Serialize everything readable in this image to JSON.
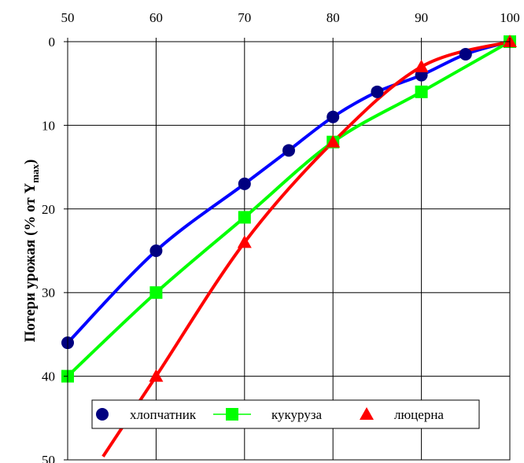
{
  "chart_data": {
    "type": "line",
    "title": "",
    "xlabel": "",
    "ylabel": {
      "main": "Потери урожая  (% от Y",
      "subscript": "max",
      "close": ")"
    },
    "x_axis_position": "top",
    "y_axis_inverted": true,
    "xlim": [
      50,
      100
    ],
    "ylim": [
      0,
      50
    ],
    "x_ticks": [
      "50",
      "60",
      "70",
      "80",
      "90",
      "100"
    ],
    "y_ticks": [
      "0",
      "10",
      "20",
      "30",
      "40",
      "50"
    ],
    "grid": true,
    "legend_position": "lower-center",
    "series": [
      {
        "name": "хлопчатник",
        "color": "#0000ff",
        "marker": "circle",
        "marker_color": "#000080",
        "x": [
          50,
          60,
          70,
          75,
          80,
          85,
          90,
          95,
          100
        ],
        "y": [
          36,
          25,
          17,
          13,
          9,
          6,
          4,
          1.5,
          0
        ]
      },
      {
        "name": "кукуруза",
        "color": "#00ff00",
        "marker": "square",
        "marker_color": "#00ff00",
        "x": [
          50,
          60,
          70,
          80,
          90,
          100
        ],
        "y": [
          40,
          30,
          21,
          12,
          6,
          0
        ]
      },
      {
        "name": "люцерна",
        "color": "#ff0000",
        "marker": "triangle",
        "marker_color": "#ff0000",
        "x": [
          60,
          70,
          80,
          90,
          100
        ],
        "y": [
          40,
          24,
          12,
          3,
          0
        ]
      }
    ]
  }
}
